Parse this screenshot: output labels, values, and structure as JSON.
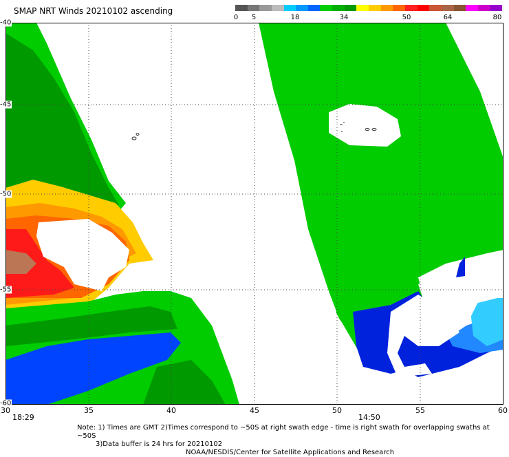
{
  "header": {
    "title": "SMAP NRT Winds 20210102 ascending"
  },
  "colorbar": {
    "labels": [
      "0",
      "5",
      "18",
      "34",
      "50",
      "64",
      "80"
    ],
    "colors": [
      "#555555",
      "#777777",
      "#999999",
      "#bbbbbb",
      "#00ccff",
      "#0099ff",
      "#0066ff",
      "#00cc00",
      "#00b000",
      "#009900",
      "#ffff00",
      "#ffcc00",
      "#ff9900",
      "#ff6600",
      "#ff2020",
      "#ff0000",
      "#cc5533",
      "#aa6644",
      "#885533",
      "#ff00ff",
      "#cc00cc",
      "#9900cc"
    ]
  },
  "axes": {
    "x_ticks": [
      "30",
      "35",
      "40",
      "45",
      "50",
      "55",
      "60"
    ],
    "y_ticks": [
      "-40",
      "-45",
      "-50",
      "-55",
      "-60"
    ]
  },
  "swath_times": [
    "18:29",
    "14:50"
  ],
  "footer": {
    "note_line1": "Note: 1) Times are GMT 2)Times correspond to ~50S at right swath edge - time is right swath for overlapping swaths at ~50S",
    "note_line2": "3)Data buffer is 24 hrs for 20210102",
    "credit": "NOAA/NESDIS/Center for Satellite Applications and Research"
  },
  "map": {
    "left_swath_colors": [
      "#00cc00",
      "#009900",
      "#ffcc00",
      "#ff9900",
      "#ff6600",
      "#ff1a1a",
      "#bb7755",
      "#0033ee",
      "#0044ff"
    ],
    "right_swath_colors": [
      "#00cc00",
      "#0022dd",
      "#2288ff",
      "#33ccff"
    ]
  }
}
